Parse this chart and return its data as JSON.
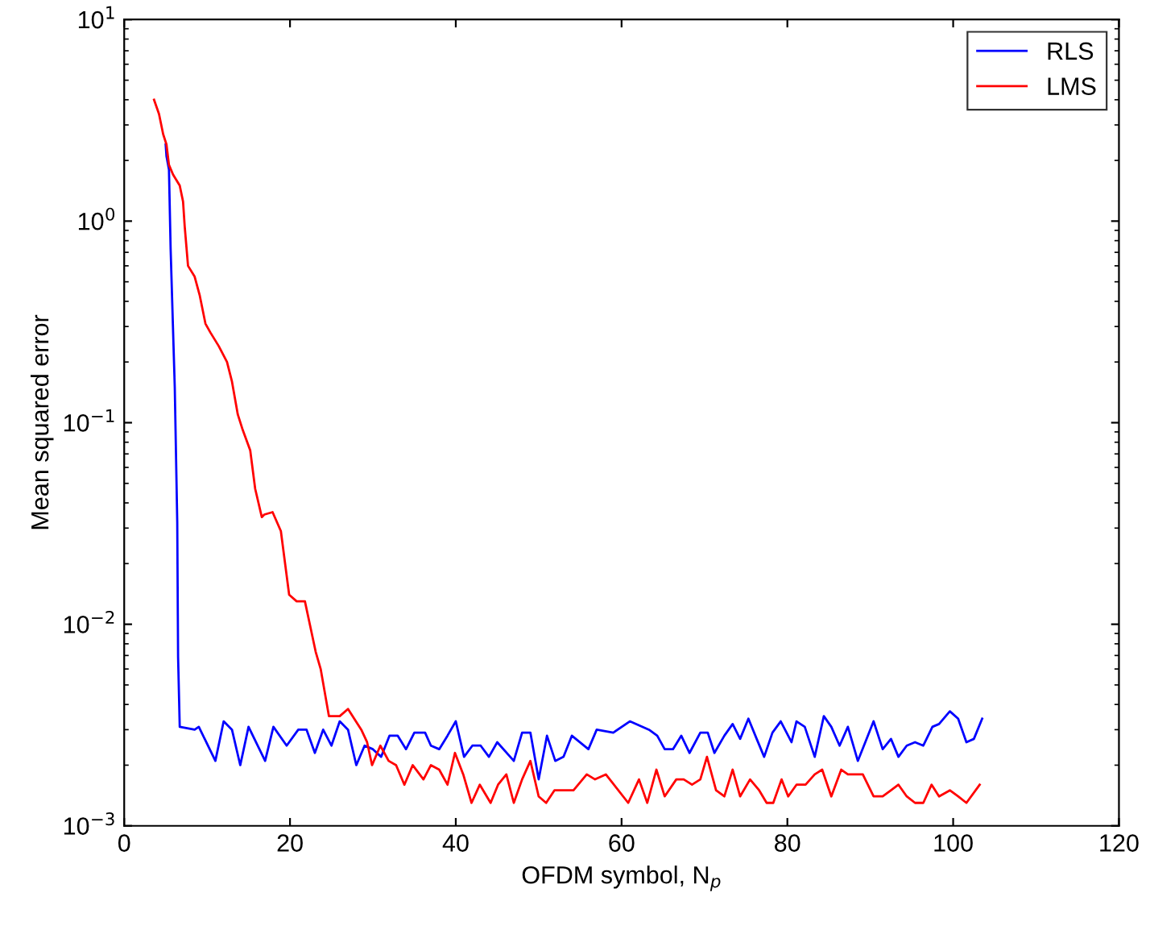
{
  "chart_data": {
    "type": "line",
    "xlabel": "OFDM symbol, N$_{p}$",
    "ylabel": "Mean squared error",
    "log": "y",
    "grid": false,
    "legend": "top right",
    "marker": "none",
    "line_style": "solid",
    "xlim": [
      0,
      120
    ],
    "xticks": [
      0,
      20,
      40,
      60,
      80,
      100,
      120
    ],
    "ylim": [
      0.001,
      10
    ],
    "yticks": [
      {
        "value": 0.001,
        "label": "10$^{−3}$"
      },
      {
        "value": 0.01,
        "label": "10$^{−2}$"
      },
      {
        "value": 0.1,
        "label": "10$^{−1}$"
      },
      {
        "value": 1,
        "label": "10$^{0}$"
      },
      {
        "value": 10,
        "label": "10$^{1}$"
      }
    ],
    "series": [
      {
        "name": "RLS",
        "color": "#0000ff",
        "x": [
          5.0,
          5.1,
          5.4,
          5.6,
          6.1,
          6.4,
          6.5,
          6.7,
          8.5,
          9,
          11,
          12,
          13,
          14,
          15,
          17,
          18,
          19.6,
          21,
          22,
          23,
          24,
          25,
          26,
          27,
          28,
          29,
          30,
          31,
          32,
          33,
          34,
          35,
          36.3,
          37,
          38,
          39,
          40,
          41,
          42,
          43,
          44,
          45,
          47,
          48,
          49,
          50,
          51,
          52,
          53,
          54,
          56,
          57,
          59,
          61.0,
          63.3,
          64.3,
          65.2,
          66.2,
          67.2,
          68.2,
          69.5,
          70.4,
          71.2,
          72.4,
          73.4,
          74.3,
          75.3,
          76.3,
          77.2,
          78.2,
          79.2,
          80.5,
          81.1,
          82.1,
          83.3,
          84.4,
          85.3,
          86.3,
          87.3,
          88.5,
          89.4,
          90.4,
          91.5,
          92.5,
          93.4,
          94.4,
          95.4,
          96.4,
          97.5,
          98.3,
          99.6,
          100.6,
          101.6,
          102.5,
          103.5
        ],
        "values": [
          2.4,
          2.1,
          1.8,
          0.73,
          0.15,
          0.032,
          0.0069,
          0.0031,
          0.003,
          0.0031,
          0.0021,
          0.0033,
          0.003,
          0.002,
          0.0031,
          0.0021,
          0.0031,
          0.0025,
          0.003,
          0.003,
          0.0023,
          0.003,
          0.0025,
          0.0033,
          0.003,
          0.002,
          0.0025,
          0.0024,
          0.0022,
          0.0028,
          0.0028,
          0.0024,
          0.0029,
          0.0029,
          0.0025,
          0.0024,
          0.0028,
          0.0033,
          0.0022,
          0.0025,
          0.0025,
          0.0022,
          0.0026,
          0.0021,
          0.0029,
          0.0029,
          0.0017,
          0.0028,
          0.0021,
          0.0022,
          0.0028,
          0.0024,
          0.003,
          0.0029,
          0.0033,
          0.003,
          0.0028,
          0.0024,
          0.0024,
          0.0028,
          0.0023,
          0.0029,
          0.0029,
          0.0023,
          0.0028,
          0.0032,
          0.0027,
          0.0034,
          0.0027,
          0.0022,
          0.0029,
          0.0033,
          0.0026,
          0.0033,
          0.0031,
          0.0022,
          0.0035,
          0.0031,
          0.0025,
          0.0031,
          0.0021,
          0.0026,
          0.0033,
          0.0024,
          0.0027,
          0.0022,
          0.0025,
          0.0026,
          0.0025,
          0.0031,
          0.0032,
          0.0037,
          0.0034,
          0.0026,
          0.0027,
          0.0034
        ]
      },
      {
        "name": "LMS",
        "color": "#ff0000",
        "x": [
          3.6,
          4.2,
          4.7,
          5.1,
          5.4,
          5.9,
          6.7,
          7.1,
          7.3,
          7.7,
          8.5,
          9.1,
          9.8,
          10.4,
          11.4,
          12.4,
          13,
          13.7,
          14.3,
          15.2,
          15.8,
          16.6,
          16.9,
          17.9,
          18.9,
          19.9,
          20.8,
          21.8,
          23.1,
          23.7,
          24.7,
          26,
          27,
          28.6,
          29.3,
          29.9,
          30.9,
          31.9,
          32.8,
          33.8,
          34.8,
          36.1,
          37,
          38,
          39,
          39.9,
          40.9,
          41.9,
          42.9,
          44.2,
          45.1,
          46.1,
          47,
          48,
          49,
          50,
          50.9,
          51.9,
          52.9,
          54.2,
          55.8,
          56.8,
          58.1,
          60.8,
          62.1,
          63.1,
          64.2,
          65.2,
          66.6,
          67.5,
          68.5,
          69.5,
          70.3,
          71.4,
          72.4,
          73.4,
          74.3,
          75.5,
          76.6,
          77.5,
          78.3,
          79.3,
          80.1,
          81.1,
          82.2,
          83.3,
          84.2,
          85.3,
          86.5,
          87.3,
          88.1,
          89.1,
          90.4,
          91.5,
          92.5,
          93.4,
          94.4,
          95.4,
          96.4,
          97.4,
          98.3,
          99.6,
          100.6,
          101.6,
          103.2
        ],
        "values": [
          4.0,
          3.4,
          2.7,
          2.4,
          1.9,
          1.7,
          1.5,
          1.25,
          0.94,
          0.6,
          0.53,
          0.43,
          0.31,
          0.28,
          0.24,
          0.2,
          0.16,
          0.11,
          0.092,
          0.073,
          0.047,
          0.034,
          0.035,
          0.036,
          0.029,
          0.014,
          0.013,
          0.013,
          0.0073,
          0.006,
          0.0035,
          0.0035,
          0.0038,
          0.003,
          0.0026,
          0.002,
          0.0025,
          0.0021,
          0.002,
          0.0016,
          0.002,
          0.0017,
          0.002,
          0.0019,
          0.0016,
          0.0023,
          0.0018,
          0.0013,
          0.0016,
          0.0013,
          0.0016,
          0.0018,
          0.0013,
          0.0017,
          0.0021,
          0.0014,
          0.0013,
          0.0015,
          0.0015,
          0.0015,
          0.0018,
          0.0017,
          0.0018,
          0.0013,
          0.0017,
          0.0013,
          0.0019,
          0.0014,
          0.0017,
          0.0017,
          0.0016,
          0.0017,
          0.0022,
          0.0015,
          0.0014,
          0.0019,
          0.0014,
          0.0017,
          0.0015,
          0.0013,
          0.0013,
          0.0017,
          0.0014,
          0.0016,
          0.0016,
          0.0018,
          0.0019,
          0.0014,
          0.0019,
          0.0018,
          0.0018,
          0.0018,
          0.0014,
          0.0014,
          0.0015,
          0.0016,
          0.0014,
          0.0013,
          0.0013,
          0.0016,
          0.0014,
          0.0015,
          0.0014,
          0.0013,
          0.0016
        ]
      }
    ]
  }
}
